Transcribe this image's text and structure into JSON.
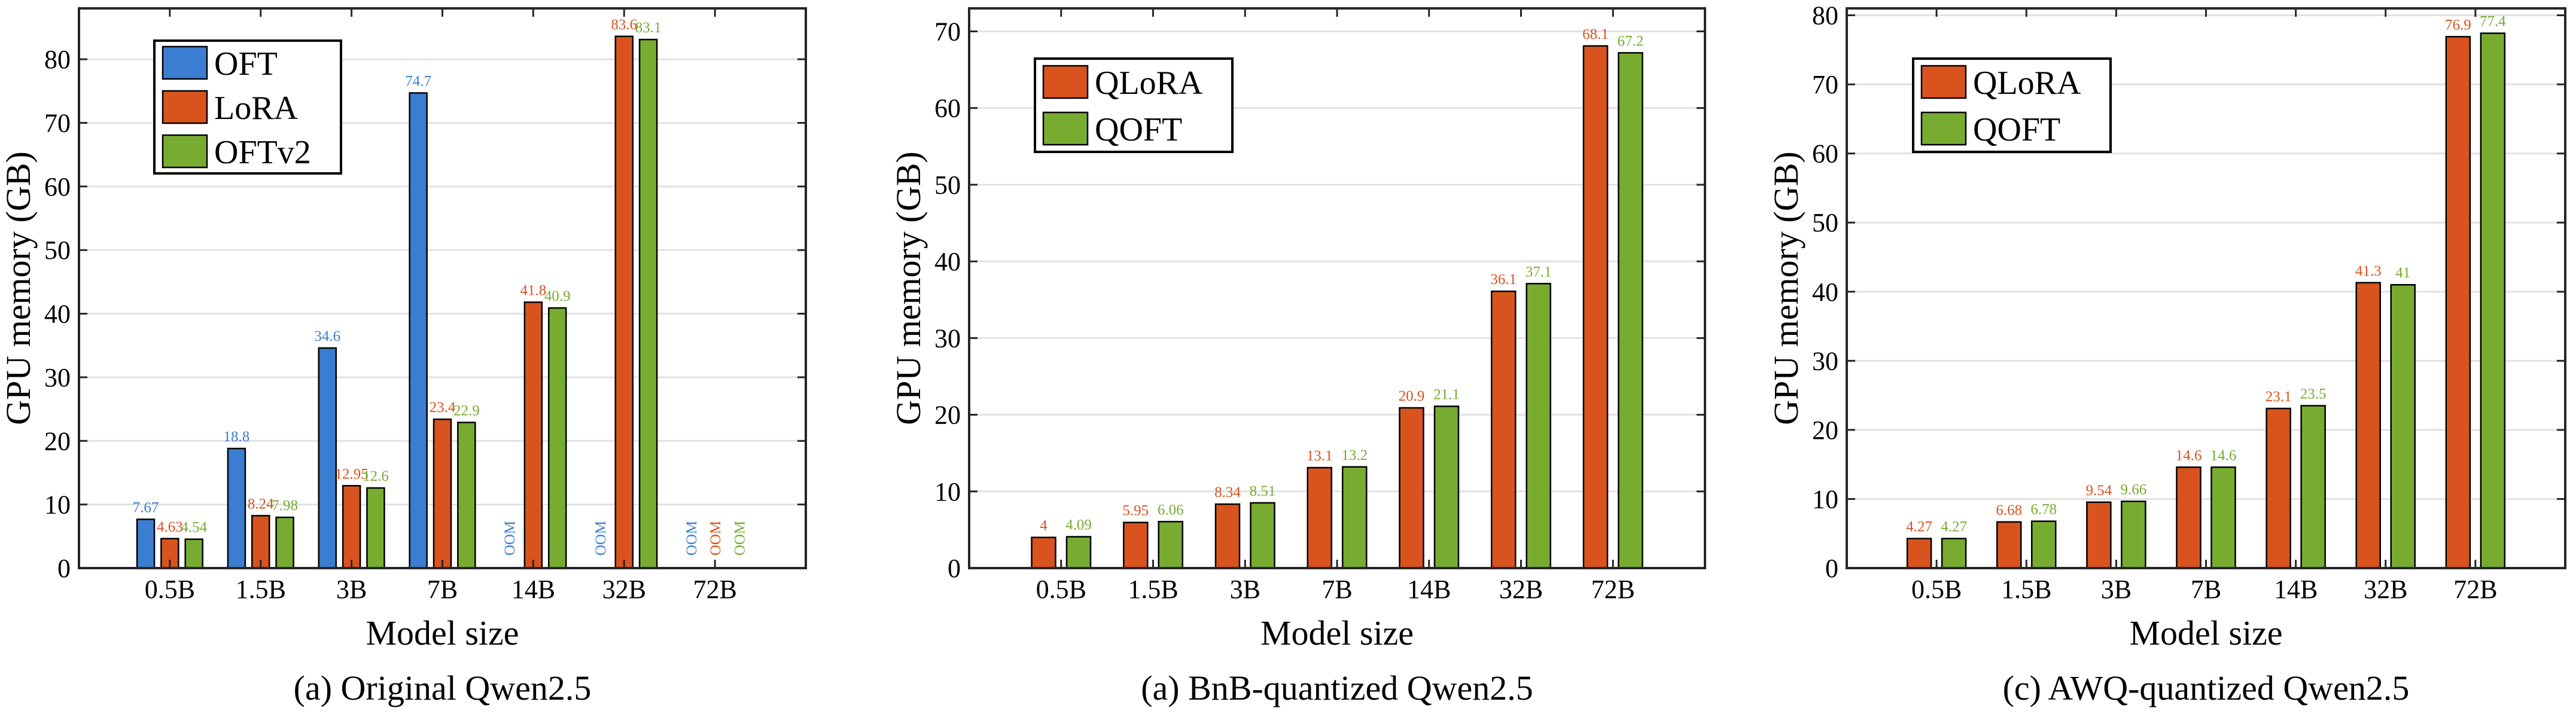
{
  "colors": {
    "oft": "#3b7dd0",
    "lora": "#d9531e",
    "oftv2": "#77ac30",
    "qlora": "#d9531e",
    "qoft": "#77ac30",
    "axis": "#262626",
    "grid": "#e2e2e2"
  },
  "chart_data": [
    {
      "type": "bar",
      "caption": "(a) Original Qwen2.5",
      "xlabel": "Model size",
      "ylabel": "GPU memory (GB)",
      "ylim": [
        0,
        88
      ],
      "yticks": [
        0,
        10,
        20,
        30,
        40,
        50,
        60,
        70,
        80
      ],
      "grid": true,
      "legend_position": "top-left",
      "categories": [
        "0.5B",
        "1.5B",
        "3B",
        "7B",
        "14B",
        "32B",
        "72B"
      ],
      "series": [
        {
          "name": "OFT",
          "color_key": "oft",
          "values": [
            7.67,
            18.8,
            34.6,
            74.7,
            null,
            null,
            null
          ],
          "labels": [
            "7.67",
            "18.8",
            "34.6",
            "74.7",
            "OOM",
            "OOM",
            "OOM"
          ]
        },
        {
          "name": "LoRA",
          "color_key": "lora",
          "values": [
            4.63,
            8.24,
            12.95,
            23.4,
            41.8,
            83.6,
            null
          ],
          "labels": [
            "4.63",
            "8.24",
            "12.95",
            "23.4",
            "41.8",
            "83.6",
            "OOM"
          ]
        },
        {
          "name": "OFTv2",
          "color_key": "oftv2",
          "values": [
            4.54,
            7.98,
            12.6,
            22.9,
            40.9,
            83.1,
            null
          ],
          "labels": [
            "4.54",
            "7.98",
            "12.6",
            "22.9",
            "40.9",
            "83.1",
            "OOM"
          ]
        }
      ]
    },
    {
      "type": "bar",
      "caption": "(a) BnB-quantized Qwen2.5",
      "xlabel": "Model size",
      "ylabel": "GPU memory (GB)",
      "ylim": [
        0,
        73
      ],
      "yticks": [
        0,
        10,
        20,
        30,
        40,
        50,
        60,
        70
      ],
      "grid": true,
      "legend_position": "top-left",
      "categories": [
        "0.5B",
        "1.5B",
        "3B",
        "7B",
        "14B",
        "32B",
        "72B"
      ],
      "series": [
        {
          "name": "QLoRA",
          "color_key": "qlora",
          "values": [
            4,
            5.95,
            8.34,
            13.1,
            20.9,
            36.1,
            68.1
          ],
          "labels": [
            "4",
            "5.95",
            "8.34",
            "13.1",
            "20.9",
            "36.1",
            "68.1"
          ]
        },
        {
          "name": "QOFT",
          "color_key": "qoft",
          "values": [
            4.09,
            6.06,
            8.51,
            13.2,
            21.1,
            37.1,
            67.2
          ],
          "labels": [
            "4.09",
            "6.06",
            "8.51",
            "13.2",
            "21.1",
            "37.1",
            "67.2"
          ]
        }
      ]
    },
    {
      "type": "bar",
      "caption": "(c) AWQ-quantized Qwen2.5",
      "xlabel": "Model size",
      "ylabel": "GPU memory (GB)",
      "ylim": [
        0,
        81
      ],
      "yticks": [
        0,
        10,
        20,
        30,
        40,
        50,
        60,
        70,
        80
      ],
      "grid": true,
      "legend_position": "top-left",
      "categories": [
        "0.5B",
        "1.5B",
        "3B",
        "7B",
        "14B",
        "32B",
        "72B"
      ],
      "series": [
        {
          "name": "QLoRA",
          "color_key": "qlora",
          "values": [
            4.27,
            6.68,
            9.54,
            14.6,
            23.1,
            41.3,
            76.9
          ],
          "labels": [
            "4.27",
            "6.68",
            "9.54",
            "14.6",
            "23.1",
            "41.3",
            "76.9"
          ]
        },
        {
          "name": "QOFT",
          "color_key": "qoft",
          "values": [
            4.27,
            6.78,
            9.66,
            14.6,
            23.5,
            41,
            77.4
          ],
          "labels": [
            "4.27",
            "6.78",
            "9.66",
            "14.6",
            "23.5",
            "41",
            "77.4"
          ]
        }
      ]
    }
  ]
}
